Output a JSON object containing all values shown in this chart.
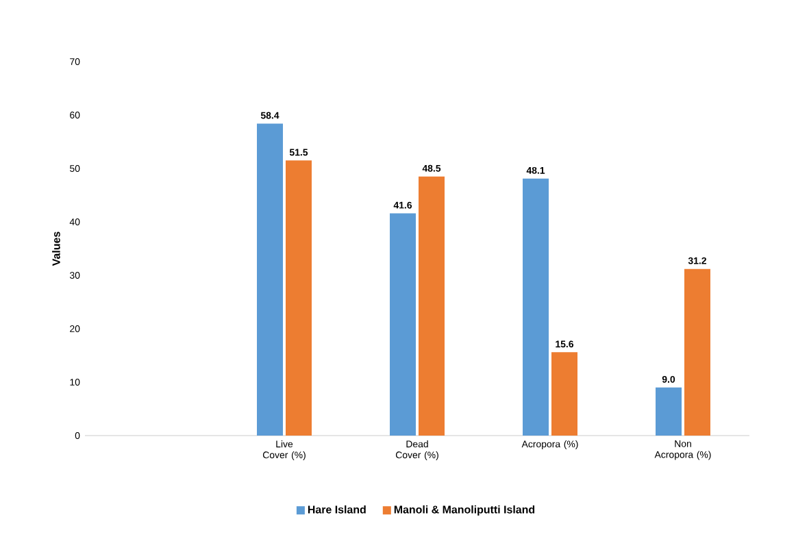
{
  "chart_data": {
    "type": "bar",
    "ylabel": "Values",
    "categories": [
      null,
      "Live Cover (%)",
      "Dead Cover (%)",
      "Acropora (%)",
      "Non Acropora (%)"
    ],
    "series": [
      {
        "name": "Hare Island",
        "color": "#5b9bd5",
        "values": [
          null,
          58.4,
          41.6,
          48.1,
          9.0
        ],
        "value_labels": [
          null,
          "58.4",
          "41.6",
          "48.1",
          "9.0"
        ]
      },
      {
        "name": "Manoli & Manoliputti Island",
        "color": "#ed7d31",
        "values": [
          null,
          51.5,
          48.5,
          15.6,
          31.2
        ],
        "value_labels": [
          null,
          "51.5",
          "48.5",
          "15.6",
          "31.2"
        ]
      }
    ],
    "ylim": [
      0,
      70
    ],
    "yticks": [
      0,
      10,
      20,
      30,
      40,
      50,
      60,
      70
    ],
    "legend": "bottom",
    "grid": false
  }
}
